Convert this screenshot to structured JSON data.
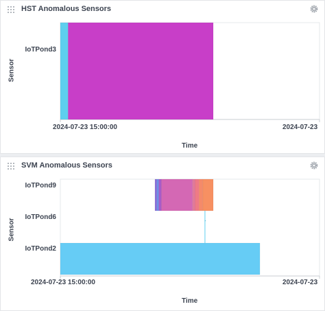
{
  "chart_data": [
    {
      "type": "timeline",
      "title": "HST Anomalous Sensors",
      "xlabel": "Time",
      "ylabel": "Sensor",
      "x_ticks": [
        "2024-07-23 15:00:00",
        "2024-07-23"
      ],
      "categories": [
        "IoTPond3"
      ],
      "segments": [
        {
          "sensor": "IoTPond3",
          "start": 0.0,
          "end": 0.03,
          "color": "#5ecfee"
        },
        {
          "sensor": "IoTPond3",
          "start": 0.03,
          "end": 0.59,
          "color": "#c83ec8"
        }
      ],
      "connectors": []
    },
    {
      "type": "timeline",
      "title": "SVM Anomalous Sensors",
      "xlabel": "Time",
      "ylabel": "Sensor",
      "x_ticks": [
        "2024-07-23 15:00:00",
        "2024-07-23"
      ],
      "categories": [
        "IoTPond9",
        "IoTPond6",
        "IoTPond2"
      ],
      "segments": [
        {
          "sensor": "IoTPond9",
          "start": 0.365,
          "end": 0.372,
          "color": "#8a6fd8"
        },
        {
          "sensor": "IoTPond9",
          "start": 0.372,
          "end": 0.38,
          "color": "#6f8ee8"
        },
        {
          "sensor": "IoTPond9",
          "start": 0.38,
          "end": 0.39,
          "color": "#a85cc8"
        },
        {
          "sensor": "IoTPond9",
          "start": 0.39,
          "end": 0.51,
          "color": "#d468b4"
        },
        {
          "sensor": "IoTPond9",
          "start": 0.51,
          "end": 0.52,
          "color": "#e07a9a"
        },
        {
          "sensor": "IoTPond9",
          "start": 0.52,
          "end": 0.535,
          "color": "#ef7a86"
        },
        {
          "sensor": "IoTPond9",
          "start": 0.535,
          "end": 0.55,
          "color": "#f48a6a"
        },
        {
          "sensor": "IoTPond9",
          "start": 0.55,
          "end": 0.59,
          "color": "#f79062"
        },
        {
          "sensor": "IoTPond6",
          "start": 0.558,
          "end": 0.561,
          "color": "#5ecfee"
        },
        {
          "sensor": "IoTPond2",
          "start": 0.0,
          "end": 0.77,
          "color": "#66ccf5"
        }
      ],
      "connectors": [
        {
          "x": 0.558,
          "from": "IoTPond9",
          "to": "IoTPond2",
          "color": "#5ecfee"
        }
      ]
    }
  ]
}
